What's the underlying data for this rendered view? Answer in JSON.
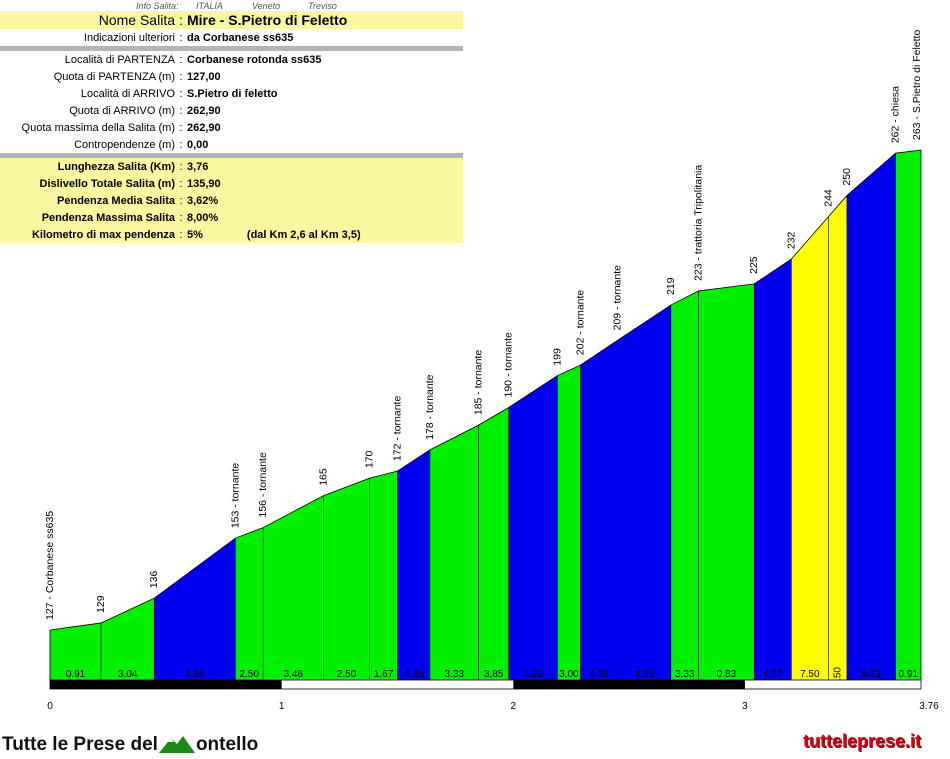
{
  "info_top": {
    "label": "Info Salita:",
    "country": "ITALIA",
    "region": "Veneto",
    "province": "Treviso"
  },
  "info": {
    "nome_label": "Nome Salita",
    "nome_value": "Mire - S.Pietro di Feletto",
    "indicazioni_label": "Indicazioni ulteriori",
    "indicazioni_value": "da Corbanese ss635",
    "partenza_label": "Località di PARTENZA",
    "partenza_value": "Corbanese rotonda ss635",
    "quota_partenza_label": "Quota di PARTENZA (m)",
    "quota_partenza_value": "127,00",
    "arrivo_label": "Località di ARRIVO",
    "arrivo_value": "S.Pietro di feletto",
    "quota_arrivo_label": "Quota di ARRIVO (m)",
    "quota_arrivo_value": "262,90",
    "quota_max_label": "Quota massima della Salita (m)",
    "quota_max_value": "262,90",
    "contropendenze_label": "Contropendenze (m)",
    "contropendenze_value": "0,00",
    "lunghezza_label": "Lunghezza Salita (Km)",
    "lunghezza_value": "3,76",
    "dislivello_label": "Dislivello Totale Salita (m)",
    "dislivello_value": "135,90",
    "pend_media_label": "Pendenza Media Salita",
    "pend_media_value": "3,62%",
    "pend_max_label": "Pendenza Massima Salita",
    "pend_max_value": "8,00%",
    "km_max_label": "Kilometro di max pendenza",
    "km_max_value": "5%",
    "km_max_note": "(dal Km 2,6 al Km 3,5)"
  },
  "chart_data": {
    "type": "area",
    "x_ticks": [
      "0",
      "1",
      "2",
      "3",
      "3.76"
    ],
    "x_range": [
      0,
      3.76
    ],
    "segments": [
      {
        "x0": 0.0,
        "x1": 0.22,
        "gradient": "0.91",
        "color": "#00f000"
      },
      {
        "x0": 0.22,
        "x1": 0.45,
        "gradient": "3.04",
        "color": "#00f000"
      },
      {
        "x0": 0.45,
        "x1": 0.8,
        "gradient": "4.86",
        "color": "#0000f0"
      },
      {
        "x0": 0.8,
        "x1": 0.92,
        "gradient": "2.50",
        "color": "#00f000"
      },
      {
        "x0": 0.92,
        "x1": 1.18,
        "gradient": "3.46",
        "color": "#00f000"
      },
      {
        "x0": 1.18,
        "x1": 1.38,
        "gradient": "2.50",
        "color": "#00f000"
      },
      {
        "x0": 1.38,
        "x1": 1.5,
        "gradient": "1.67",
        "color": "#00f000"
      },
      {
        "x0": 1.5,
        "x1": 1.64,
        "gradient": "4.29",
        "color": "#0000f0"
      },
      {
        "x0": 1.64,
        "x1": 1.85,
        "gradient": "3.33",
        "color": "#00f000"
      },
      {
        "x0": 1.85,
        "x1": 1.98,
        "gradient": "3.85",
        "color": "#00f000"
      },
      {
        "x0": 1.98,
        "x1": 2.19,
        "gradient": "4.29",
        "color": "#0000f0"
      },
      {
        "x0": 2.19,
        "x1": 2.29,
        "gradient": "3.00",
        "color": "#00f000"
      },
      {
        "x0": 2.29,
        "x1": 2.45,
        "gradient": "4.38",
        "color": "#0000f0"
      },
      {
        "x0": 2.45,
        "x1": 2.68,
        "gradient": "4.35",
        "color": "#0000f0"
      },
      {
        "x0": 2.68,
        "x1": 2.8,
        "gradient": "3.33",
        "color": "#00f000"
      },
      {
        "x0": 2.8,
        "x1": 3.04,
        "gradient": "0.83",
        "color": "#00f000"
      },
      {
        "x0": 3.04,
        "x1": 3.2,
        "gradient": "4.37",
        "color": "#0000f0"
      },
      {
        "x0": 3.2,
        "x1": 3.36,
        "gradient": "7.50",
        "color": "#ffff00"
      },
      {
        "x0": 3.36,
        "x1": 3.44,
        "gradient": "7.50",
        "color": "#ffff00"
      },
      {
        "x0": 3.44,
        "x1": 3.65,
        "gradient": "5.71",
        "color": "#0000f0"
      },
      {
        "x0": 3.65,
        "x1": 3.76,
        "gradient": "0.91",
        "color": "#00f000"
      }
    ],
    "points": [
      {
        "x": 0.0,
        "y": 127.0,
        "label": "127 - Corbanese ss635"
      },
      {
        "x": 0.22,
        "y": 129.0,
        "label": "129"
      },
      {
        "x": 0.45,
        "y": 136.0,
        "label": "136"
      },
      {
        "x": 0.8,
        "y": 153.0,
        "label": "153 - tornante"
      },
      {
        "x": 0.92,
        "y": 156.0,
        "label": "156 - tornante"
      },
      {
        "x": 1.18,
        "y": 165.0,
        "label": "165"
      },
      {
        "x": 1.38,
        "y": 170.0,
        "label": "170"
      },
      {
        "x": 1.5,
        "y": 172.0,
        "label": "172 - tornante"
      },
      {
        "x": 1.64,
        "y": 178.0,
        "label": "178 - tornante"
      },
      {
        "x": 1.85,
        "y": 185.0,
        "label": "185 - tornante"
      },
      {
        "x": 1.98,
        "y": 190.0,
        "label": "190 - tornante"
      },
      {
        "x": 2.19,
        "y": 199.0,
        "label": "199"
      },
      {
        "x": 2.29,
        "y": 202.0,
        "label": "202 - tornante"
      },
      {
        "x": 2.45,
        "y": 209.0,
        "label": "209 - tornante"
      },
      {
        "x": 2.68,
        "y": 219.0,
        "label": "219"
      },
      {
        "x": 2.8,
        "y": 223.0,
        "label": "223 - trattoria Tripolitania"
      },
      {
        "x": 3.04,
        "y": 225.0,
        "label": "225"
      },
      {
        "x": 3.2,
        "y": 232.0,
        "label": "232"
      },
      {
        "x": 3.36,
        "y": 244.0,
        "label": "244"
      },
      {
        "x": 3.44,
        "y": 250.0,
        "label": "250"
      },
      {
        "x": 3.65,
        "y": 262.0,
        "label": "262 - chiesa"
      },
      {
        "x": 3.76,
        "y": 262.9,
        "label": "263 - S.Pietro di Feletto"
      }
    ]
  },
  "footer": {
    "logo_left": "Tutte le Prese del",
    "logo_right": "ontello",
    "site": "tutteleprese.it"
  }
}
